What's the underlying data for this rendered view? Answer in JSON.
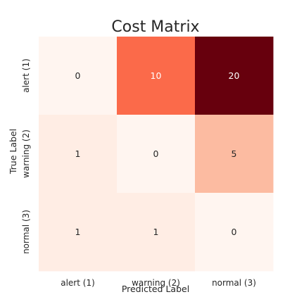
{
  "chart_data": {
    "type": "heatmap",
    "title": "Cost Matrix",
    "xlabel": "Predicted Label",
    "ylabel": "True Label",
    "x_categories": [
      "alert (1)",
      "warning (2)",
      "normal (3)"
    ],
    "y_categories": [
      "alert (1)",
      "warning (2)",
      "normal (3)"
    ],
    "values": [
      [
        0,
        10,
        20
      ],
      [
        1,
        0,
        5
      ],
      [
        1,
        1,
        0
      ]
    ],
    "colormap": "Reds",
    "colorbar": false
  }
}
